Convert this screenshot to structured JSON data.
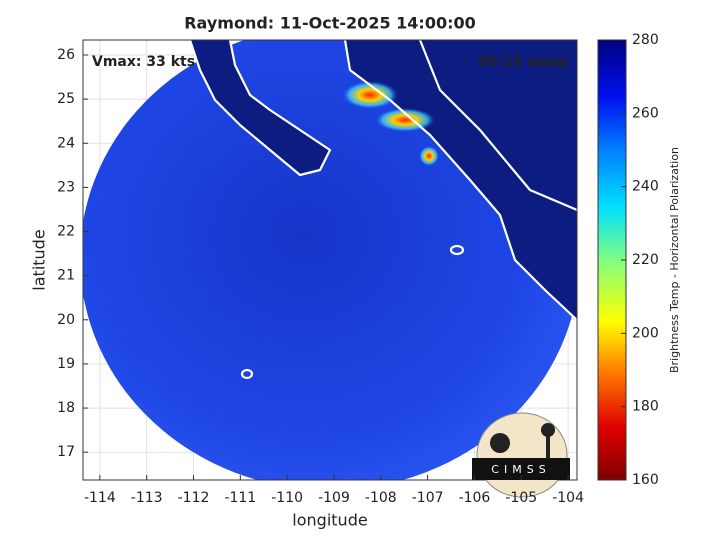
{
  "map": {
    "title": "Raymond: 11-Oct-2025 14:00:00",
    "annotations": {
      "intensity": "Vmax: 33 kts",
      "time_to_center": "00:18 away"
    },
    "xlabel": "longitude",
    "ylabel": "latitude",
    "xlim": [
      -114.36,
      -103.81
    ],
    "ylim": [
      16.37,
      26.34
    ],
    "xticks": [
      -114,
      -113,
      -112,
      -111,
      -110,
      -109,
      -108,
      -107,
      -106,
      -105,
      -104
    ],
    "yticks": [
      17,
      18,
      19,
      20,
      21,
      22,
      23,
      24,
      25,
      26
    ],
    "grid": true
  },
  "colorbar": {
    "label": "Brightness Temp - Horizontal Polarization",
    "lim": [
      160,
      280
    ],
    "ticks": [
      160,
      180,
      200,
      220,
      240,
      260,
      280
    ]
  },
  "logo": {
    "text": "CIMSS"
  }
}
